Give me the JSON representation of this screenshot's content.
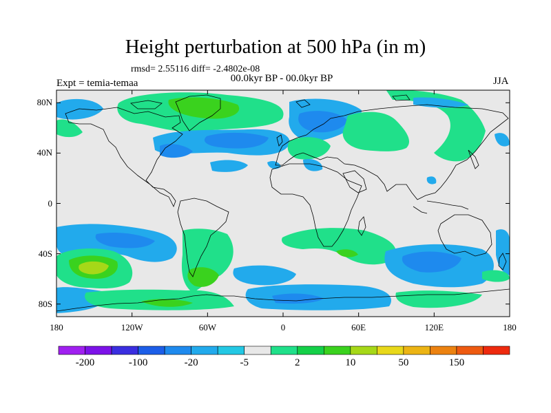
{
  "plot": {
    "title": "Height perturbation at 500 hPa (in m)",
    "stats": "rmsd= 2.55116 diff= -2.4802e-08",
    "period": "00.0kyr BP - 00.0kyr BP",
    "experiment": "Expt = temia-temaa",
    "season": "JJA"
  },
  "axes": {
    "lat_labels": [
      "80N",
      "40N",
      "0",
      "40S",
      "80S"
    ],
    "lon_labels": [
      "180",
      "120W",
      "60W",
      "0",
      "60E",
      "120E",
      "180"
    ]
  },
  "colorbar": {
    "colors": [
      "#a020f0",
      "#7c12e8",
      "#3a2ee0",
      "#1c5ee8",
      "#1e8aee",
      "#22aaec",
      "#23c8e4",
      "#e8e8e8",
      "#20e08a",
      "#14d048",
      "#3ad21e",
      "#a6d818",
      "#e8d81a",
      "#ecb414",
      "#ec8210",
      "#ee5a10",
      "#ee2a0e"
    ],
    "labels": [
      "-200",
      "-100",
      "-20",
      "-5",
      "2",
      "10",
      "50",
      "150"
    ]
  }
}
